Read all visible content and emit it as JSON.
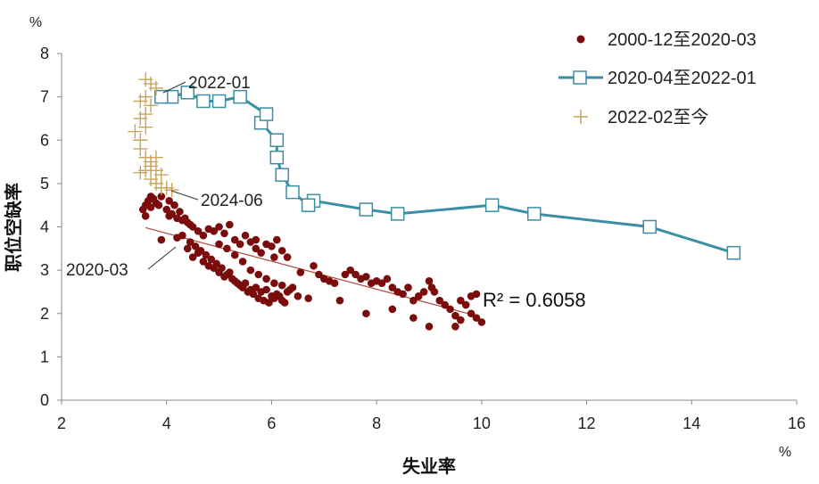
{
  "chart_data": {
    "type": "scatter",
    "xlabel": "失业率",
    "ylabel": "职位空缺率",
    "x_unit": "%",
    "y_unit": "%",
    "xlim": [
      2,
      16
    ],
    "ylim": [
      0,
      8
    ],
    "x_ticks": [
      "2",
      "4",
      "6",
      "8",
      "10",
      "12",
      "14",
      "16"
    ],
    "y_ticks": [
      "0",
      "1",
      "2",
      "3",
      "4",
      "5",
      "6",
      "7",
      "8"
    ],
    "grid": false,
    "legend_position": "top-right",
    "series": [
      {
        "name": "2000-12至2020-03",
        "marker": "dot",
        "color": "#7b0c0c",
        "points": [
          [
            3.6,
            4.5
          ],
          [
            3.65,
            4.6
          ],
          [
            3.7,
            4.7
          ],
          [
            3.75,
            4.65
          ],
          [
            3.8,
            4.55
          ],
          [
            3.55,
            4.4
          ],
          [
            3.6,
            4.25
          ],
          [
            3.7,
            4.45
          ],
          [
            3.9,
            4.7
          ],
          [
            3.85,
            4.5
          ],
          [
            4.0,
            4.4
          ],
          [
            4.05,
            4.25
          ],
          [
            4.1,
            4.3
          ],
          [
            4.2,
            4.2
          ],
          [
            4.3,
            4.15
          ],
          [
            4.4,
            4.1
          ],
          [
            4.5,
            4.0
          ],
          [
            4.6,
            3.9
          ],
          [
            4.7,
            3.8
          ],
          [
            4.8,
            3.95
          ],
          [
            4.9,
            3.9
          ],
          [
            5.0,
            4.0
          ],
          [
            5.1,
            3.85
          ],
          [
            5.2,
            4.05
          ],
          [
            5.3,
            3.7
          ],
          [
            5.4,
            3.6
          ],
          [
            5.5,
            3.8
          ],
          [
            5.6,
            3.65
          ],
          [
            5.7,
            3.5
          ],
          [
            5.8,
            3.4
          ],
          [
            5.9,
            3.6
          ],
          [
            6.0,
            3.55
          ],
          [
            6.1,
            3.7
          ],
          [
            6.2,
            3.45
          ],
          [
            6.3,
            3.3
          ],
          [
            3.9,
            3.7
          ],
          [
            4.2,
            3.75
          ],
          [
            4.4,
            3.5
          ],
          [
            4.5,
            3.3
          ],
          [
            4.6,
            3.4
          ],
          [
            4.7,
            3.2
          ],
          [
            4.8,
            3.1
          ],
          [
            4.9,
            3.05
          ],
          [
            5.0,
            2.95
          ],
          [
            5.1,
            2.85
          ],
          [
            5.2,
            2.95
          ],
          [
            5.3,
            2.75
          ],
          [
            5.4,
            2.65
          ],
          [
            5.5,
            2.7
          ],
          [
            5.6,
            2.55
          ],
          [
            5.7,
            2.6
          ],
          [
            5.8,
            2.5
          ],
          [
            5.9,
            2.55
          ],
          [
            6.0,
            2.4
          ],
          [
            6.1,
            2.45
          ],
          [
            6.2,
            2.3
          ],
          [
            6.3,
            2.5
          ],
          [
            6.4,
            2.6
          ],
          [
            6.5,
            2.4
          ],
          [
            6.7,
            2.35
          ],
          [
            6.9,
            2.9
          ],
          [
            7.0,
            2.8
          ],
          [
            7.1,
            2.75
          ],
          [
            7.2,
            2.7
          ],
          [
            7.3,
            2.3
          ],
          [
            7.5,
            3.0
          ],
          [
            7.6,
            2.9
          ],
          [
            7.7,
            2.8
          ],
          [
            7.8,
            2.85
          ],
          [
            7.9,
            2.7
          ],
          [
            8.0,
            2.75
          ],
          [
            8.1,
            2.7
          ],
          [
            8.2,
            2.8
          ],
          [
            8.3,
            2.6
          ],
          [
            8.4,
            2.5
          ],
          [
            8.5,
            2.45
          ],
          [
            8.6,
            2.6
          ],
          [
            8.7,
            2.3
          ],
          [
            8.8,
            2.4
          ],
          [
            8.9,
            2.5
          ],
          [
            9.0,
            2.75
          ],
          [
            9.05,
            2.6
          ],
          [
            9.1,
            2.5
          ],
          [
            9.2,
            2.3
          ],
          [
            9.3,
            2.2
          ],
          [
            9.4,
            2.1
          ],
          [
            9.5,
            1.95
          ],
          [
            9.6,
            1.85
          ],
          [
            9.7,
            2.2
          ],
          [
            9.8,
            2.0
          ],
          [
            9.9,
            1.9
          ],
          [
            10.0,
            1.8
          ],
          [
            9.5,
            1.7
          ],
          [
            9.0,
            1.7
          ],
          [
            8.7,
            1.9
          ],
          [
            7.8,
            2.0
          ],
          [
            8.3,
            2.1
          ],
          [
            9.8,
            2.4
          ],
          [
            9.9,
            2.45
          ],
          [
            9.6,
            2.3
          ],
          [
            4.3,
            3.8
          ],
          [
            4.45,
            3.65
          ],
          [
            4.55,
            3.55
          ],
          [
            4.65,
            3.45
          ],
          [
            4.75,
            3.35
          ],
          [
            4.85,
            3.25
          ],
          [
            4.95,
            3.15
          ],
          [
            5.05,
            3.05
          ],
          [
            5.15,
            2.9
          ],
          [
            5.25,
            2.8
          ],
          [
            5.35,
            2.7
          ],
          [
            5.45,
            2.6
          ],
          [
            5.55,
            2.5
          ],
          [
            5.65,
            2.45
          ],
          [
            5.75,
            2.35
          ],
          [
            5.85,
            2.3
          ],
          [
            5.95,
            2.25
          ],
          [
            6.05,
            2.35
          ],
          [
            6.15,
            2.4
          ],
          [
            6.25,
            2.25
          ],
          [
            4.05,
            4.6
          ],
          [
            4.15,
            4.5
          ],
          [
            4.25,
            4.35
          ],
          [
            4.35,
            4.2
          ],
          [
            4.45,
            4.05
          ],
          [
            5.7,
            3.7
          ],
          [
            6.05,
            3.3
          ],
          [
            6.55,
            2.95
          ],
          [
            6.8,
            3.1
          ],
          [
            7.4,
            2.9
          ],
          [
            5.0,
            3.6
          ],
          [
            5.15,
            3.5
          ],
          [
            5.3,
            3.35
          ],
          [
            5.45,
            3.2
          ],
          [
            5.6,
            3.0
          ],
          [
            5.75,
            2.9
          ],
          [
            5.9,
            2.8
          ],
          [
            6.05,
            2.7
          ],
          [
            6.2,
            2.65
          ],
          [
            6.35,
            2.55
          ]
        ]
      },
      {
        "name": "2020-04至2022-01",
        "marker": "square-line",
        "color": "#3a8fa5",
        "points": [
          [
            14.8,
            3.4
          ],
          [
            13.2,
            4.0
          ],
          [
            11.0,
            4.3
          ],
          [
            10.2,
            4.5
          ],
          [
            8.4,
            4.3
          ],
          [
            7.8,
            4.4
          ],
          [
            6.8,
            4.6
          ],
          [
            6.7,
            4.5
          ],
          [
            6.4,
            4.8
          ],
          [
            6.2,
            5.2
          ],
          [
            6.1,
            5.6
          ],
          [
            6.1,
            6.0
          ],
          [
            5.8,
            6.4
          ],
          [
            5.9,
            6.6
          ],
          [
            5.4,
            7.0
          ],
          [
            5.0,
            6.9
          ],
          [
            4.7,
            6.9
          ],
          [
            4.4,
            7.1
          ],
          [
            4.1,
            7.0
          ],
          [
            3.9,
            7.0
          ]
        ]
      },
      {
        "name": "2022-02至今",
        "marker": "plus",
        "color": "#c9a45c",
        "points": [
          [
            3.6,
            7.4
          ],
          [
            3.7,
            7.3
          ],
          [
            3.8,
            7.2
          ],
          [
            3.6,
            7.0
          ],
          [
            3.5,
            6.9
          ],
          [
            3.7,
            6.8
          ],
          [
            3.6,
            6.6
          ],
          [
            3.5,
            6.5
          ],
          [
            3.6,
            6.3
          ],
          [
            3.4,
            6.2
          ],
          [
            3.5,
            6.0
          ],
          [
            3.5,
            5.8
          ],
          [
            3.6,
            5.6
          ],
          [
            3.7,
            5.5
          ],
          [
            3.8,
            5.6
          ],
          [
            3.7,
            5.4
          ],
          [
            3.6,
            5.3
          ],
          [
            3.5,
            5.25
          ],
          [
            3.8,
            5.3
          ],
          [
            3.9,
            5.2
          ],
          [
            3.7,
            5.1
          ],
          [
            3.8,
            5.0
          ],
          [
            3.9,
            4.9
          ],
          [
            4.0,
            4.9
          ],
          [
            4.1,
            4.85
          ]
        ]
      }
    ],
    "trendline": {
      "x": [
        3.6,
        9.8
      ],
      "y": [
        3.98,
        1.98
      ],
      "label": "R² = 0.6058"
    },
    "annotations": [
      {
        "text": "2022-01",
        "point": [
          3.9,
          7.0
        ]
      },
      {
        "text": "2024-06",
        "point": [
          4.1,
          4.85
        ]
      },
      {
        "text": "2020-03",
        "point": [
          4.3,
          3.8
        ]
      }
    ]
  }
}
